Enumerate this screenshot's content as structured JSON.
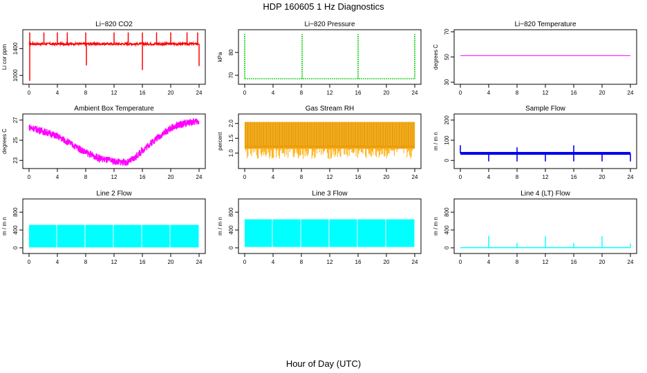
{
  "figure": {
    "title": "HDP  160605 1 Hz Diagnostics",
    "xlabel": "Hour of Day (UTC)"
  },
  "chart_data": [
    {
      "type": "line",
      "title": "Li−820 CO2",
      "ylabel": "Li cor ppm",
      "color": "#ff0000",
      "xlim": [
        0,
        24
      ],
      "ylim": [
        900,
        1650
      ],
      "xticks": [
        0,
        4,
        8,
        12,
        16,
        20,
        24
      ],
      "xtick_labels": [
        "0",
        "4",
        "8",
        "12",
        "16",
        "20",
        "24"
      ],
      "yticks": [
        1000,
        1400
      ],
      "ytick_labels": [
        "1000",
        "1400"
      ],
      "baseline": 1470,
      "spikes_up_at": [
        0.1,
        2.1,
        4.0,
        5.4,
        8.0,
        12.0,
        14.0,
        16.0,
        18.0,
        20.0,
        22.3,
        23.8
      ],
      "spike_up_to": 1640,
      "spikes_down": [
        {
          "x": 0.1,
          "y": 920
        },
        {
          "x": 8.1,
          "y": 1150
        },
        {
          "x": 16.0,
          "y": 1080
        },
        {
          "x": 24.0,
          "y": 1140
        }
      ]
    },
    {
      "type": "line",
      "title": "Li−820 Pressure",
      "ylabel": "kPa",
      "color": "#00cc00",
      "xlim": [
        0,
        24
      ],
      "ylim": [
        67,
        89
      ],
      "xticks": [
        0,
        4,
        8,
        12,
        16,
        20,
        24
      ],
      "xtick_labels": [
        "0",
        "4",
        "8",
        "12",
        "16",
        "20",
        "24"
      ],
      "yticks": [
        70,
        80
      ],
      "ytick_labels": [
        "70",
        "80"
      ],
      "baseline": 68.5,
      "spikes_at": [
        0.0,
        8.1,
        16.0,
        24.0
      ],
      "spike_to": 88
    },
    {
      "type": "line",
      "title": "Li−820 Temperature",
      "ylabel": "degrees C",
      "color": "#ff00ff",
      "xlim": [
        0,
        24
      ],
      "ylim": [
        30,
        70
      ],
      "xticks": [
        0,
        4,
        8,
        12,
        16,
        20,
        24
      ],
      "xtick_labels": [
        "0",
        "4",
        "8",
        "12",
        "16",
        "20",
        "24"
      ],
      "yticks": [
        30,
        50,
        70
      ],
      "ytick_labels": [
        "30",
        "50",
        "70"
      ],
      "constant": 51
    },
    {
      "type": "line",
      "title": "Ambient Box Temperature",
      "ylabel": "degrees C",
      "color": "#ff00ff",
      "xlim": [
        0,
        24
      ],
      "ylim": [
        22.4,
        27.4
      ],
      "xticks": [
        0,
        4,
        8,
        12,
        16,
        20,
        24
      ],
      "xtick_labels": [
        "0",
        "4",
        "8",
        "12",
        "16",
        "20",
        "24"
      ],
      "yticks": [
        23,
        25,
        27
      ],
      "ytick_labels": [
        "23",
        "25",
        "27"
      ],
      "x": [
        0,
        2,
        4,
        6,
        8,
        10,
        12,
        14,
        15,
        16,
        18,
        20,
        22,
        24
      ],
      "y": [
        26.3,
        25.9,
        25.4,
        24.6,
        23.8,
        23.2,
        22.9,
        22.8,
        23.3,
        24.0,
        25.2,
        26.2,
        26.7,
        26.9
      ],
      "band": 0.35
    },
    {
      "type": "line",
      "title": "Gas Stream RH",
      "ylabel": "percent",
      "color": "#ffaa00",
      "xlim": [
        0,
        24
      ],
      "ylim": [
        0.55,
        2.25
      ],
      "xticks": [
        0,
        4,
        8,
        12,
        16,
        20,
        24
      ],
      "xtick_labels": [
        "0",
        "4",
        "8",
        "12",
        "16",
        "20",
        "24"
      ],
      "yticks": [
        1.0,
        1.5,
        2.0
      ],
      "ytick_labels": [
        "1.0",
        "1.5",
        "2.0"
      ],
      "high": 2.05,
      "low": 0.8
    },
    {
      "type": "line",
      "title": "Sample Flow",
      "ylabel": "m / m n",
      "color": "#0000ee",
      "xlim": [
        0,
        24
      ],
      "ylim": [
        -30,
        220
      ],
      "xticks": [
        0,
        4,
        8,
        12,
        16,
        20,
        24
      ],
      "xtick_labels": [
        "0",
        "4",
        "8",
        "12",
        "16",
        "20",
        "24"
      ],
      "yticks": [
        0,
        100,
        200
      ],
      "ytick_labels": [
        "0",
        "100",
        "200"
      ],
      "band": [
        28,
        42
      ],
      "spikes_up": [
        {
          "x": 0.0,
          "y": 75
        },
        {
          "x": 8.0,
          "y": 65
        },
        {
          "x": 16.0,
          "y": 75
        }
      ],
      "spikes_down_at": [
        4.0,
        8.0,
        12.0,
        16.0,
        20.0,
        24.0
      ],
      "spike_down_to": -5
    },
    {
      "type": "area",
      "title": "Line 2 Flow",
      "ylabel": "m / m n",
      "color": "#00ffff",
      "xlim": [
        0,
        24
      ],
      "ylim": [
        -80,
        1050
      ],
      "xticks": [
        0,
        4,
        8,
        12,
        16,
        20,
        24
      ],
      "xtick_labels": [
        "0",
        "4",
        "8",
        "12",
        "16",
        "20",
        "24"
      ],
      "yticks": [
        0,
        400,
        800
      ],
      "ytick_labels": [
        "0",
        "400",
        "800"
      ],
      "low": 10,
      "high": 515,
      "gaps_at": [
        3.9,
        7.9,
        11.9,
        15.9,
        19.9,
        24.0
      ]
    },
    {
      "type": "area",
      "title": "Line 3 Flow",
      "ylabel": "m / m n",
      "color": "#00ffff",
      "xlim": [
        0,
        24
      ],
      "ylim": [
        -80,
        1050
      ],
      "xticks": [
        0,
        4,
        8,
        12,
        16,
        20,
        24
      ],
      "xtick_labels": [
        "0",
        "4",
        "8",
        "12",
        "16",
        "20",
        "24"
      ],
      "yticks": [
        0,
        400,
        800
      ],
      "ytick_labels": [
        "0",
        "400",
        "800"
      ],
      "low": 20,
      "high": 640,
      "gaps_at": [
        3.9,
        7.9,
        11.9,
        15.9,
        19.9,
        24.0
      ]
    },
    {
      "type": "line",
      "title": "Line 4 (LT) Flow",
      "ylabel": "m / m n",
      "color": "#00ffff",
      "xlim": [
        0,
        24
      ],
      "ylim": [
        -80,
        1050
      ],
      "xticks": [
        0,
        4,
        8,
        12,
        16,
        20,
        24
      ],
      "xtick_labels": [
        "0",
        "4",
        "8",
        "12",
        "16",
        "20",
        "24"
      ],
      "yticks": [
        0,
        400,
        800
      ],
      "ytick_labels": [
        "0",
        "400",
        "800"
      ],
      "baseline": 5,
      "spikes": [
        {
          "x": 4.0,
          "y": 270
        },
        {
          "x": 8.0,
          "y": 110
        },
        {
          "x": 12.0,
          "y": 260
        },
        {
          "x": 16.0,
          "y": 110
        },
        {
          "x": 20.0,
          "y": 260
        },
        {
          "x": 24.0,
          "y": 100
        }
      ]
    }
  ]
}
